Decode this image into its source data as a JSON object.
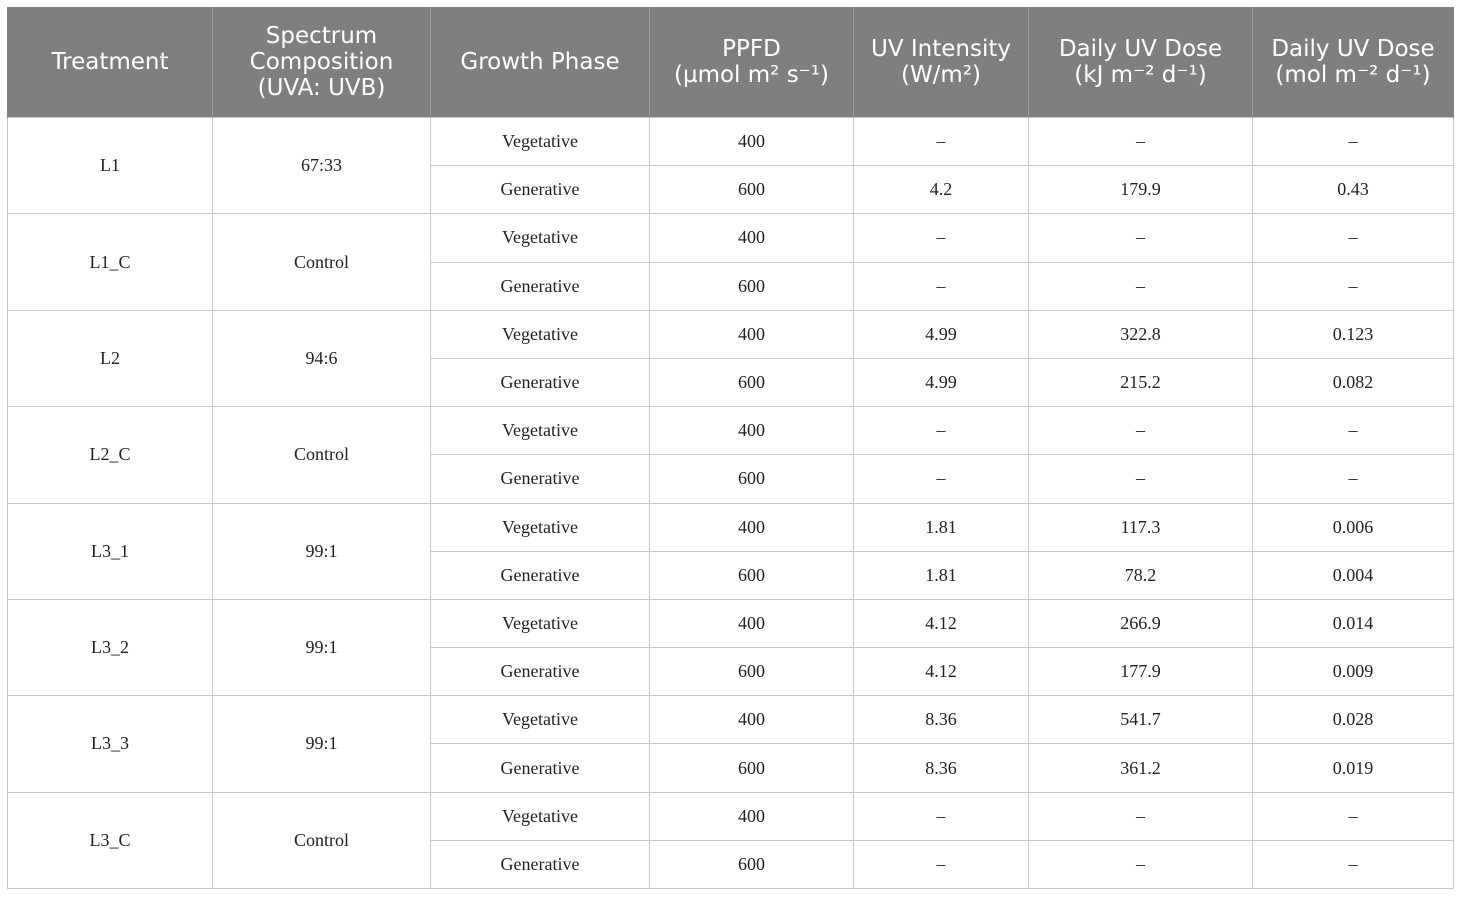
{
  "table": {
    "headers": [
      [
        "Treatment"
      ],
      [
        "Spectrum",
        "Composition",
        "(UVA: UVB)"
      ],
      [
        "Growth Phase"
      ],
      [
        "PPFD",
        "(µmol m² s⁻¹)"
      ],
      [
        "UV Intensity",
        "(W/m²)"
      ],
      [
        "Daily UV Dose",
        "(kJ m⁻² d⁻¹)"
      ],
      [
        "Daily UV Dose",
        "(mol m⁻² d⁻¹)"
      ]
    ],
    "groups": [
      {
        "treatment": "L1",
        "spectrum": "67:33",
        "rows": [
          {
            "phase": "Vegetative",
            "ppfd": "400",
            "uv_intensity": "–",
            "dose_kj": "–",
            "dose_mol": "–"
          },
          {
            "phase": "Generative",
            "ppfd": "600",
            "uv_intensity": "4.2",
            "dose_kj": "179.9",
            "dose_mol": "0.43"
          }
        ]
      },
      {
        "treatment": "L1_C",
        "spectrum": "Control",
        "rows": [
          {
            "phase": "Vegetative",
            "ppfd": "400",
            "uv_intensity": "–",
            "dose_kj": "–",
            "dose_mol": "–"
          },
          {
            "phase": "Generative",
            "ppfd": "600",
            "uv_intensity": "–",
            "dose_kj": "–",
            "dose_mol": "–"
          }
        ]
      },
      {
        "treatment": "L2",
        "spectrum": "94:6",
        "rows": [
          {
            "phase": "Vegetative",
            "ppfd": "400",
            "uv_intensity": "4.99",
            "dose_kj": "322.8",
            "dose_mol": "0.123"
          },
          {
            "phase": "Generative",
            "ppfd": "600",
            "uv_intensity": "4.99",
            "dose_kj": "215.2",
            "dose_mol": "0.082"
          }
        ]
      },
      {
        "treatment": "L2_C",
        "spectrum": "Control",
        "rows": [
          {
            "phase": "Vegetative",
            "ppfd": "400",
            "uv_intensity": "–",
            "dose_kj": "–",
            "dose_mol": "–"
          },
          {
            "phase": "Generative",
            "ppfd": "600",
            "uv_intensity": "–",
            "dose_kj": "–",
            "dose_mol": "–"
          }
        ]
      },
      {
        "treatment": "L3_1",
        "spectrum": "99:1",
        "rows": [
          {
            "phase": "Vegetative",
            "ppfd": "400",
            "uv_intensity": "1.81",
            "dose_kj": "117.3",
            "dose_mol": "0.006"
          },
          {
            "phase": "Generative",
            "ppfd": "600",
            "uv_intensity": "1.81",
            "dose_kj": "78.2",
            "dose_mol": "0.004"
          }
        ]
      },
      {
        "treatment": "L3_2",
        "spectrum": "99:1",
        "rows": [
          {
            "phase": "Vegetative",
            "ppfd": "400",
            "uv_intensity": "4.12",
            "dose_kj": "266.9",
            "dose_mol": "0.014"
          },
          {
            "phase": "Generative",
            "ppfd": "600",
            "uv_intensity": "4.12",
            "dose_kj": "177.9",
            "dose_mol": "0.009"
          }
        ]
      },
      {
        "treatment": "L3_3",
        "spectrum": "99:1",
        "rows": [
          {
            "phase": "Vegetative",
            "ppfd": "400",
            "uv_intensity": "8.36",
            "dose_kj": "541.7",
            "dose_mol": "0.028"
          },
          {
            "phase": "Generative",
            "ppfd": "600",
            "uv_intensity": "8.36",
            "dose_kj": "361.2",
            "dose_mol": "0.019"
          }
        ]
      },
      {
        "treatment": "L3_C",
        "spectrum": "Control",
        "rows": [
          {
            "phase": "Vegetative",
            "ppfd": "400",
            "uv_intensity": "–",
            "dose_kj": "–",
            "dose_mol": "–"
          },
          {
            "phase": "Generative",
            "ppfd": "600",
            "uv_intensity": "–",
            "dose_kj": "–",
            "dose_mol": "–"
          }
        ]
      }
    ]
  }
}
